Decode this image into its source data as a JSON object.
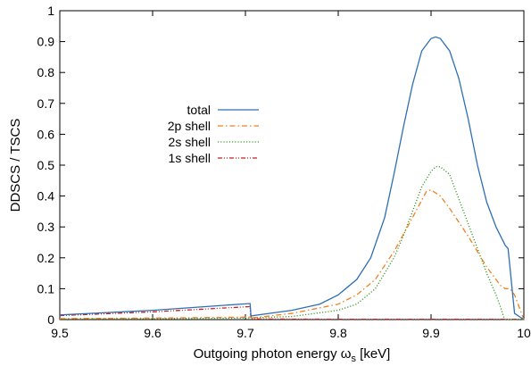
{
  "chart_data": {
    "type": "line",
    "xlabel": "Outgoing photon energy ω",
    "xlabel_sub": "s",
    "xlabel_unit": " [keV]",
    "ylabel": "DDSCS / TSCS",
    "xlim": [
      9.5,
      10.0
    ],
    "ylim": [
      0,
      1
    ],
    "x_ticks": [
      "9.5",
      "9.6",
      "9.7",
      "9.8",
      "9.9",
      "10"
    ],
    "y_ticks": [
      "0",
      "0.1",
      "0.2",
      "0.3",
      "0.4",
      "0.5",
      "0.6",
      "0.7",
      "0.8",
      "0.9",
      "1"
    ],
    "grid": false,
    "legend_position": "center-left",
    "series": [
      {
        "name": "total",
        "color": "#2e6fb4",
        "dash": "solid",
        "x": [
          9.5,
          9.6,
          9.705,
          9.706,
          9.75,
          9.78,
          9.8,
          9.82,
          9.835,
          9.85,
          9.86,
          9.87,
          9.88,
          9.89,
          9.9,
          9.905,
          9.91,
          9.92,
          9.93,
          9.94,
          9.95,
          9.96,
          9.97,
          9.98,
          9.983,
          9.99,
          10.0
        ],
        "y": [
          0.015,
          0.03,
          0.052,
          0.012,
          0.03,
          0.05,
          0.08,
          0.13,
          0.2,
          0.33,
          0.47,
          0.62,
          0.76,
          0.87,
          0.91,
          0.915,
          0.91,
          0.87,
          0.78,
          0.65,
          0.5,
          0.38,
          0.3,
          0.24,
          0.23,
          0.02,
          0.0
        ]
      },
      {
        "name": "2p shell",
        "color": "#f08020",
        "dash": "dash-dot",
        "x": [
          9.5,
          9.6,
          9.705,
          9.706,
          9.75,
          9.8,
          9.82,
          9.84,
          9.86,
          9.88,
          9.895,
          9.9,
          9.91,
          9.92,
          9.94,
          9.96,
          9.975,
          9.98,
          9.985,
          9.99,
          10.0
        ],
        "y": [
          0.003,
          0.005,
          0.008,
          0.005,
          0.02,
          0.05,
          0.08,
          0.13,
          0.22,
          0.33,
          0.415,
          0.42,
          0.4,
          0.36,
          0.27,
          0.17,
          0.11,
          0.1,
          0.1,
          0.08,
          0.0
        ]
      },
      {
        "name": "2s shell",
        "color": "#3a9a2a",
        "dash": "dotted",
        "x": [
          9.5,
          9.6,
          9.7,
          9.75,
          9.8,
          9.82,
          9.84,
          9.86,
          9.87,
          9.88,
          9.89,
          9.9,
          9.905,
          9.91,
          9.92,
          9.93,
          9.94,
          9.95,
          9.96,
          9.97,
          9.975,
          9.978,
          9.98,
          10.0
        ],
        "y": [
          0.002,
          0.003,
          0.005,
          0.01,
          0.03,
          0.05,
          0.1,
          0.2,
          0.27,
          0.35,
          0.43,
          0.48,
          0.495,
          0.495,
          0.47,
          0.39,
          0.31,
          0.23,
          0.15,
          0.08,
          0.04,
          0.01,
          0.0,
          0.0
        ]
      },
      {
        "name": "1s shell",
        "color": "#c81e1e",
        "dash": "dash-dot-dot",
        "x": [
          9.5,
          9.6,
          9.705,
          9.706,
          9.75,
          9.8,
          9.9,
          10.0
        ],
        "y": [
          0.013,
          0.025,
          0.042,
          0.002,
          0.0015,
          0.001,
          0.001,
          0.001
        ]
      }
    ]
  }
}
